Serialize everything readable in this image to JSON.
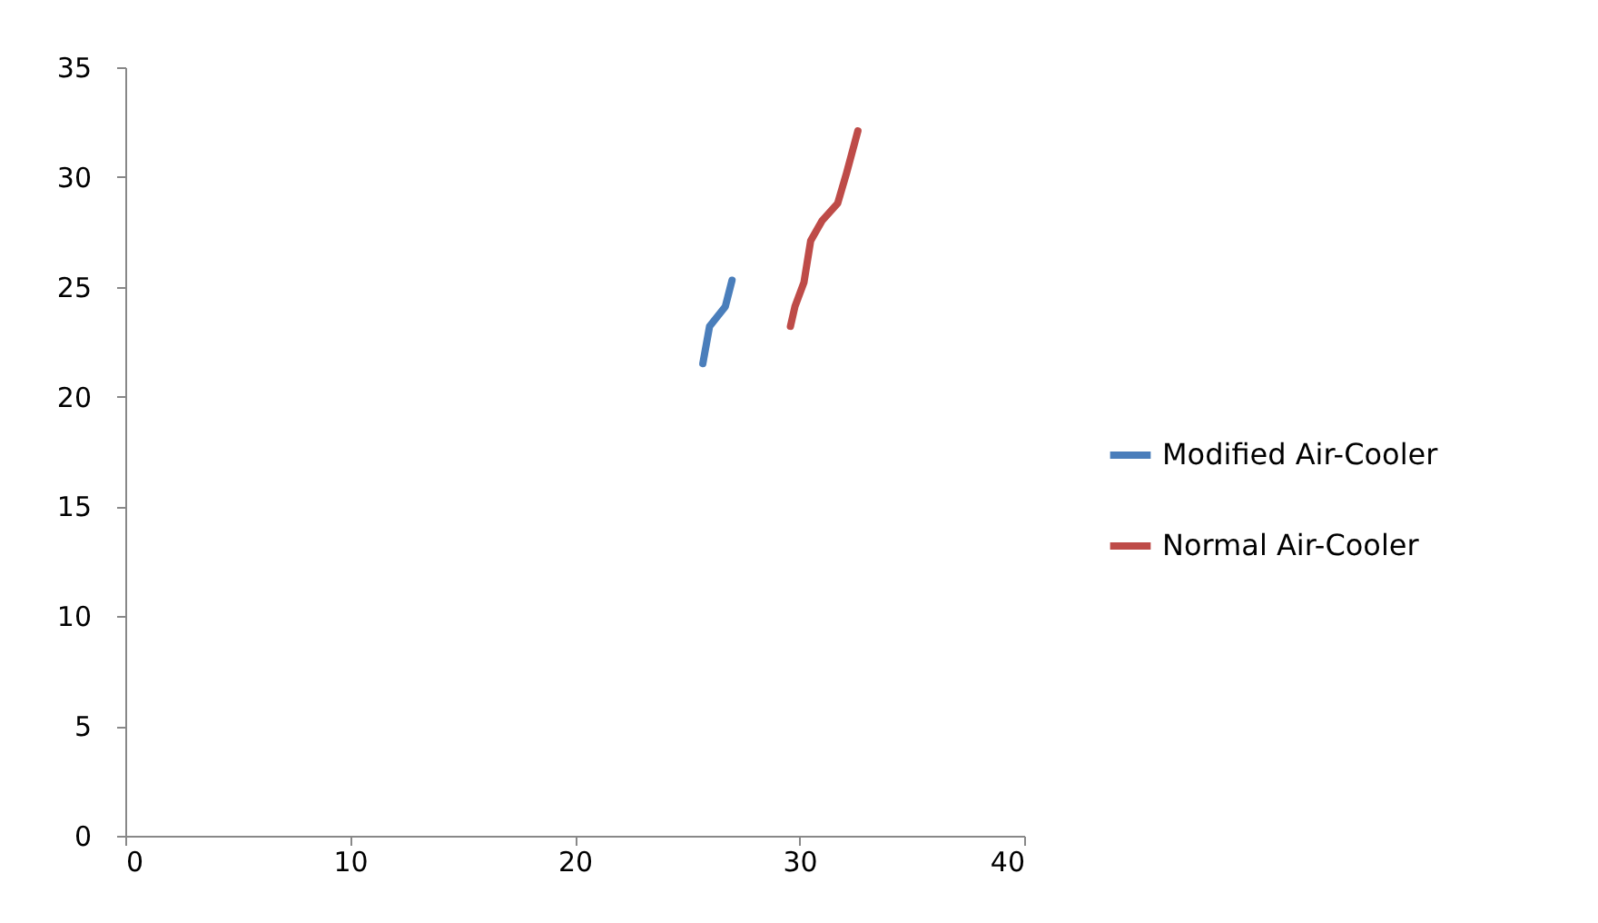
{
  "chart_data": {
    "type": "line",
    "xlim": [
      0,
      40
    ],
    "xticks": [
      0,
      10,
      20,
      30,
      40
    ],
    "ylim": [
      0,
      35
    ],
    "yticks": [
      0,
      5,
      10,
      15,
      20,
      25,
      30,
      35
    ],
    "legend": "right",
    "marker": "none",
    "line_style": "solid",
    "series": [
      {
        "name": "Modified Air-Cooler",
        "color": "#4a7ebb",
        "x": [
          25.7,
          26.0,
          26.7,
          27.0
        ],
        "values": [
          21.5,
          23.2,
          24.1,
          25.3
        ]
      },
      {
        "name": "Normal Air-Cooler",
        "color": "#be4b48",
        "x": [
          29.6,
          29.8,
          30.2,
          30.5,
          31.0,
          31.7,
          32.1,
          32.6
        ],
        "values": [
          23.2,
          24.1,
          25.2,
          27.1,
          28.0,
          28.8,
          30.2,
          32.1
        ]
      }
    ]
  }
}
